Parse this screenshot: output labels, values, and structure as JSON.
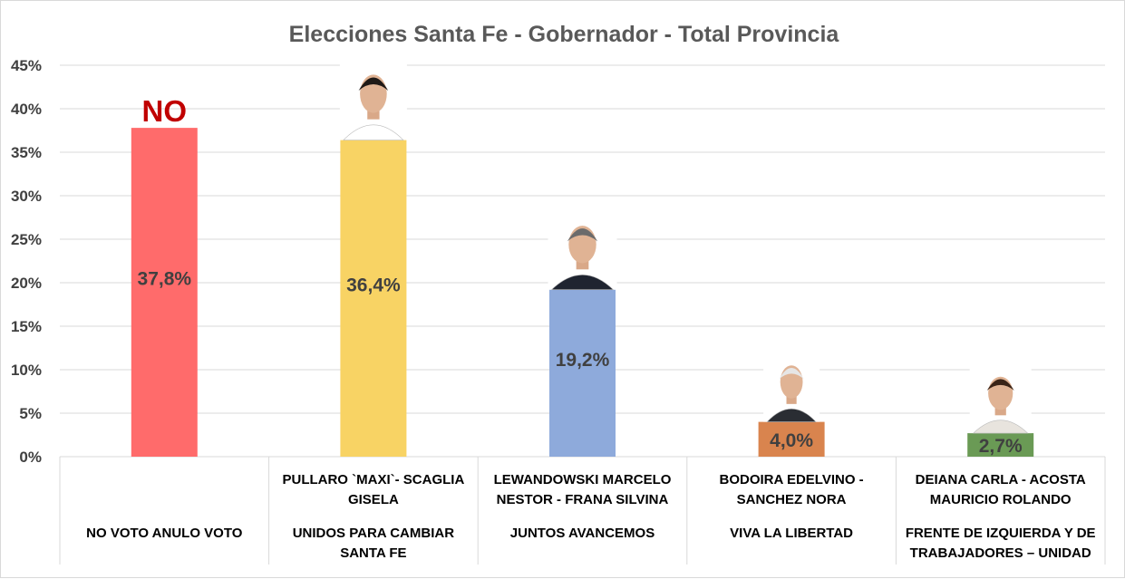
{
  "chart_data": {
    "type": "bar",
    "title": "Elecciones Santa Fe - Gobernador - Total Provincia",
    "yticks": [
      "0%",
      "5%",
      "10%",
      "15%",
      "20%",
      "25%",
      "30%",
      "35%",
      "40%",
      "45%"
    ],
    "ylim": [
      0,
      45
    ],
    "grid": true,
    "categories": [
      {
        "candidate": [],
        "party": [
          "NO VOTO ANULO VOTO"
        ]
      },
      {
        "candidate": [
          "PULLARO `MAXI`- SCAGLIA",
          "GISELA"
        ],
        "party": [
          "UNIDOS PARA CAMBIAR",
          "SANTA FE"
        ]
      },
      {
        "candidate": [
          "LEWANDOWSKI MARCELO",
          "NESTOR - FRANA SILVINA"
        ],
        "party": [
          "JUNTOS AVANCEMOS"
        ]
      },
      {
        "candidate": [
          "BODOIRA EDELVINO -",
          "SANCHEZ NORA"
        ],
        "party": [
          "VIVA LA LIBERTAD"
        ]
      },
      {
        "candidate": [
          "DEIANA CARLA - ACOSTA",
          "MAURICIO ROLANDO"
        ],
        "party": [
          "FRENTE DE IZQUIERDA Y DE",
          "TRABAJADORES – UNIDAD"
        ]
      }
    ],
    "values": [
      37.8,
      36.4,
      19.2,
      4.0,
      2.7
    ],
    "data_labels": [
      "37,8%",
      "36,4%",
      "19,2%",
      "4,0%",
      "2,7%"
    ],
    "colors": [
      "#ff6b6b",
      "#f8d364",
      "#8eaadb",
      "#d9844e",
      "#6a9a55"
    ],
    "annotation": "NO"
  }
}
